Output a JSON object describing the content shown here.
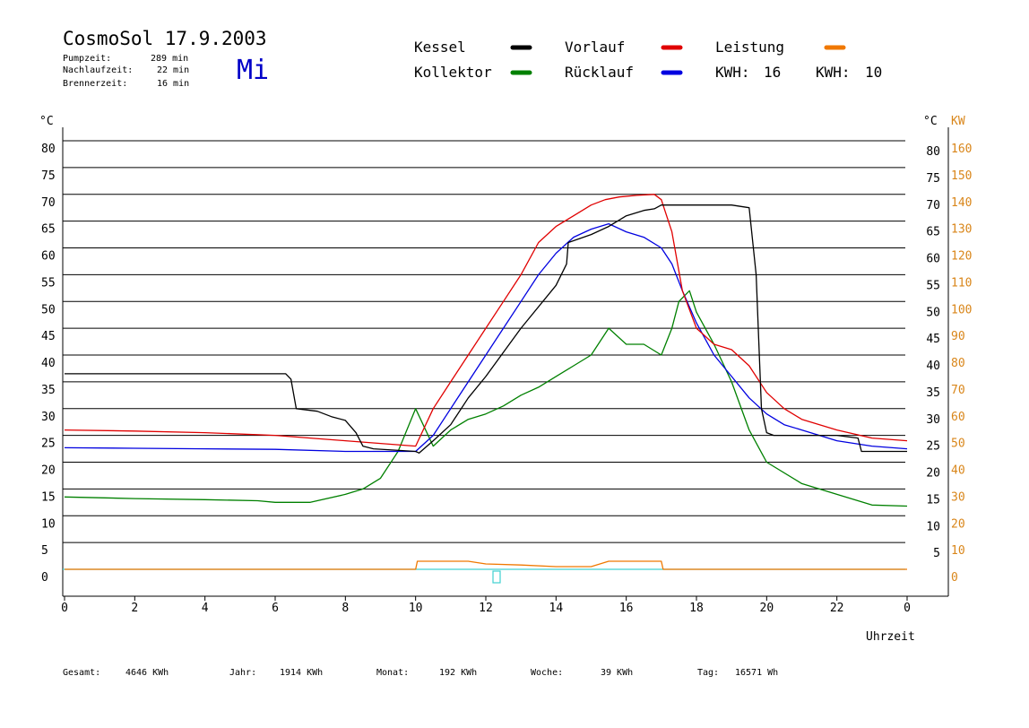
{
  "header": {
    "title": "CosmoSol 17.9.2003",
    "day": "Mi",
    "stats": [
      {
        "label": "Pumpzeit:",
        "value": "289 min"
      },
      {
        "label": "Nachlaufzeit:",
        "value": "22 min"
      },
      {
        "label": "Brennerzeit:",
        "value": "16 min"
      }
    ]
  },
  "legend": {
    "items": [
      {
        "label": "Kessel",
        "color": "#000000"
      },
      {
        "label": "Vorlauf",
        "color": "#e00000"
      },
      {
        "label": "Leistung",
        "color": "#f07800"
      },
      {
        "label": "Kollektor",
        "color": "#008000"
      },
      {
        "label": "Rücklauf",
        "color": "#0000e0"
      }
    ],
    "kwh": [
      {
        "label": "KWH:",
        "value": "16",
        "color": "#d9861a"
      },
      {
        "label": "KWH:",
        "value": "10",
        "color": "#8a2aa8"
      }
    ]
  },
  "footer": [
    {
      "label": "Gesamt:",
      "value": "4646 KWh"
    },
    {
      "label": "Jahr:",
      "value": "1914 KWh"
    },
    {
      "label": "Monat:",
      "value": "192 KWh"
    },
    {
      "label": "Woche:",
      "value": "39 KWh"
    },
    {
      "label": "Tag:",
      "value": "16571 Wh"
    }
  ],
  "chart_data": {
    "type": "line",
    "xlabel": "Uhrzeit",
    "ylabel_left": "°C",
    "ylabel_right_unit_c": "°C",
    "ylabel_right": "KW",
    "xlim": [
      0,
      24
    ],
    "ylim": [
      -5,
      80
    ],
    "x_ticks": [
      "0",
      "2",
      "4",
      "6",
      "8",
      "10",
      "12",
      "14",
      "16",
      "18",
      "20",
      "22",
      "0"
    ],
    "y_ticks_left": [
      "0",
      "5",
      "10",
      "15",
      "20",
      "25",
      "30",
      "35",
      "40",
      "45",
      "50",
      "55",
      "60",
      "65",
      "70",
      "75",
      "80"
    ],
    "y_ticks_right_c": [
      "5",
      "10",
      "15",
      "20",
      "25",
      "30",
      "35",
      "40",
      "45",
      "50",
      "55",
      "60",
      "65",
      "70",
      "75",
      "80"
    ],
    "y_ticks_right_kw": [
      "0",
      "10",
      "20",
      "30",
      "40",
      "50",
      "60",
      "70",
      "80",
      "90",
      "100",
      "110",
      "120",
      "130",
      "140",
      "150",
      "160"
    ],
    "zero_line_color": "#40d0d0",
    "series": [
      {
        "name": "Kessel",
        "color": "#000000",
        "x": [
          0,
          6.3,
          6.45,
          6.6,
          7.2,
          7.6,
          8.0,
          8.3,
          8.5,
          8.8,
          10.0,
          10.1,
          10.5,
          11.0,
          11.5,
          12.0,
          13.0,
          14.0,
          14.3,
          14.35,
          15.0,
          15.5,
          16.0,
          16.5,
          16.8,
          17.0,
          17.2,
          18.0,
          19.0,
          19.5,
          19.7,
          19.85,
          20.0,
          20.2,
          21.0,
          22.0,
          22.6,
          22.7,
          23.5,
          24.0
        ],
        "y": [
          36.5,
          36.5,
          35.5,
          30,
          29.5,
          28.5,
          27.8,
          25.5,
          23,
          22.5,
          22,
          21.7,
          24,
          27,
          32,
          36,
          45,
          53,
          57,
          61,
          62.5,
          64,
          66,
          67,
          67.3,
          68,
          68,
          68,
          68,
          67.5,
          55,
          30,
          25.5,
          25,
          25,
          25,
          24.5,
          22,
          22,
          22
        ]
      },
      {
        "name": "Vorlauf",
        "color": "#e00000",
        "x": [
          0,
          2,
          4,
          6,
          8,
          9,
          10,
          10.5,
          11,
          11.5,
          12,
          12.5,
          13,
          13.5,
          14,
          14.5,
          15,
          15.4,
          15.8,
          16.3,
          16.8,
          17.0,
          17.3,
          17.6,
          18.0,
          18.5,
          19.0,
          19.5,
          20.0,
          20.5,
          21.0,
          22.0,
          23.0,
          24.0
        ],
        "y": [
          26,
          25.8,
          25.5,
          25,
          24,
          23.5,
          23,
          30,
          35,
          40,
          45,
          50,
          55,
          61,
          64,
          66,
          68,
          69,
          69.5,
          69.8,
          70,
          69,
          63,
          52,
          45,
          42,
          41,
          38,
          33,
          30,
          28,
          26,
          24.5,
          24
        ]
      },
      {
        "name": "Rücklauf",
        "color": "#0000e0",
        "x": [
          0,
          2,
          4,
          6,
          8,
          10,
          10.5,
          11,
          11.5,
          12,
          12.5,
          13,
          13.5,
          14,
          14.5,
          15,
          15.5,
          16,
          16.5,
          17.0,
          17.3,
          17.6,
          18.0,
          18.5,
          19.0,
          19.5,
          20.0,
          20.5,
          21.0,
          22.0,
          23.0,
          24.0
        ],
        "y": [
          22.7,
          22.6,
          22.5,
          22.4,
          22,
          22,
          25,
          30,
          35,
          40,
          45,
          50,
          55,
          59,
          62,
          63.5,
          64.5,
          63,
          62,
          60,
          57,
          52,
          46,
          40,
          36,
          32,
          29,
          27,
          26,
          24,
          23,
          22.5
        ]
      },
      {
        "name": "Kollektor",
        "color": "#008000",
        "x": [
          0,
          2,
          4,
          5.5,
          6,
          7,
          8,
          8.5,
          9,
          9.5,
          10,
          10.5,
          11,
          11.5,
          12,
          12.5,
          13,
          13.5,
          14,
          14.5,
          15,
          15.5,
          16,
          16.5,
          17.0,
          17.3,
          17.5,
          17.8,
          18.0,
          18.5,
          19.0,
          19.5,
          20.0,
          21.0,
          22.0,
          23.0,
          24.0
        ],
        "y": [
          13.5,
          13.2,
          13.0,
          12.8,
          12.5,
          12.5,
          14,
          15,
          17,
          22,
          30,
          23,
          26,
          28,
          29,
          30.5,
          32.5,
          34,
          36,
          38,
          40,
          45,
          42,
          42,
          40,
          45,
          50,
          52,
          48,
          42,
          35,
          26,
          20,
          16,
          14,
          12,
          11.8
        ]
      },
      {
        "name": "Leistung",
        "color": "#f07800",
        "x": [
          0,
          10,
          10.05,
          11.5,
          12,
          13,
          14,
          15,
          15.5,
          16,
          17,
          17.05,
          24
        ],
        "y": [
          0,
          0,
          1.5,
          1.5,
          1.0,
          0.8,
          0.5,
          0.5,
          1.5,
          1.5,
          1.5,
          0,
          0
        ]
      }
    ]
  }
}
